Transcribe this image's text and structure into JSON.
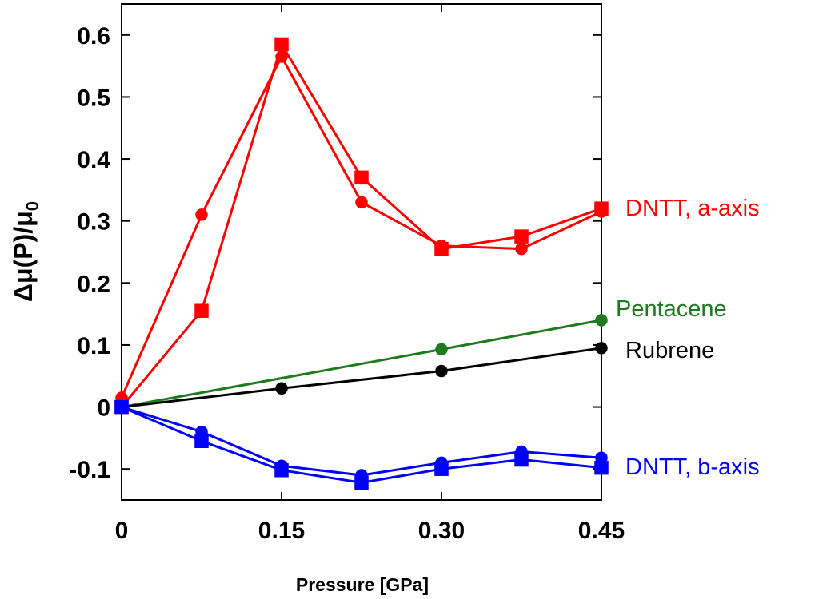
{
  "chart_data": {
    "type": "line",
    "title": "",
    "xlabel": "Pressure [GPa]",
    "ylabel": {
      "main": "Δμ(P)/μ",
      "subscript": "0"
    },
    "xlim": [
      0,
      0.45
    ],
    "ylim": [
      -0.15,
      0.65
    ],
    "x_ticks": [
      0,
      0.15,
      0.3,
      0.45
    ],
    "x_tick_labels": [
      "0",
      "0.15",
      "0.30",
      "0.45"
    ],
    "y_ticks": [
      -0.1,
      0,
      0.1,
      0.2,
      0.3,
      0.4,
      0.5,
      0.6
    ],
    "y_tick_labels": [
      "-0.1",
      "0",
      "0.1",
      "0.2",
      "0.3",
      "0.4",
      "0.5",
      "0.6"
    ],
    "grid": false,
    "series": [
      {
        "name": "DNTT a-axis (filled squares)",
        "group": "DNTT, a-axis",
        "color": "#ff0000",
        "marker": "square",
        "x": [
          0,
          0.075,
          0.15,
          0.225,
          0.3,
          0.375,
          0.45
        ],
        "y": [
          0.0,
          0.155,
          0.585,
          0.37,
          0.255,
          0.275,
          0.32
        ]
      },
      {
        "name": "DNTT a-axis (filled circles)",
        "group": "DNTT, a-axis",
        "color": "#ff0000",
        "marker": "circle",
        "x": [
          0,
          0.075,
          0.15,
          0.225,
          0.3,
          0.375,
          0.45
        ],
        "y": [
          0.015,
          0.31,
          0.565,
          0.33,
          0.26,
          0.255,
          0.315
        ]
      },
      {
        "name": "Pentacene",
        "group": "Pentacene",
        "color": "#1e7a1e",
        "marker": "circle",
        "x": [
          0,
          0.3,
          0.45
        ],
        "y": [
          0.0,
          0.093,
          0.14
        ]
      },
      {
        "name": "Rubrene",
        "group": "Rubrene",
        "color": "#000000",
        "marker": "circle",
        "x": [
          0,
          0.15,
          0.3,
          0.45
        ],
        "y": [
          0.0,
          0.03,
          0.058,
          0.095
        ]
      },
      {
        "name": "DNTT b-axis (circles)",
        "group": "DNTT, b-axis",
        "color": "#0000ff",
        "marker": "circle",
        "x": [
          0,
          0.075,
          0.15,
          0.225,
          0.3,
          0.375,
          0.45
        ],
        "y": [
          0.0,
          -0.04,
          -0.095,
          -0.11,
          -0.09,
          -0.072,
          -0.082
        ]
      },
      {
        "name": "DNTT b-axis (squares)",
        "group": "DNTT, b-axis",
        "color": "#0000ff",
        "marker": "square",
        "x": [
          0,
          0.075,
          0.15,
          0.225,
          0.3,
          0.375,
          0.45
        ],
        "y": [
          0.0,
          -0.055,
          -0.102,
          -0.122,
          -0.1,
          -0.085,
          -0.098
        ]
      }
    ],
    "annotations": [
      {
        "text": "DNTT, a-axis",
        "color": "#ff0000"
      },
      {
        "text": "Pentacene",
        "color": "#1e7a1e"
      },
      {
        "text": "Rubrene",
        "color": "#000000"
      },
      {
        "text": "DNTT, b-axis",
        "color": "#0000ff"
      }
    ]
  }
}
